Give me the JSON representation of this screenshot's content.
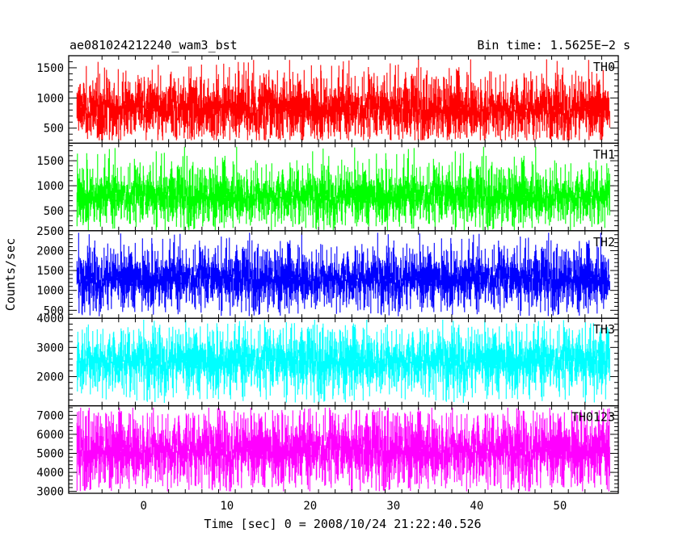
{
  "header": {
    "left_title": "ae081024212240_wam3_bst",
    "right_title": "Bin time: 1.5625E−2 s"
  },
  "chart_data": {
    "type": "line",
    "xlabel": "Time [sec] 0 = 2008/10/24 21:22:40.526",
    "ylabel": "Counts/sec",
    "xlim": [
      -9,
      57
    ],
    "x_start": -8,
    "x_end": 56,
    "x_ticks": [
      0,
      10,
      20,
      30,
      40,
      50
    ],
    "grid": false,
    "panels": [
      {
        "name": "TH0",
        "color": "#ff0000",
        "ylim": [
          250,
          1700
        ],
        "yticks": [
          500,
          1000,
          1500
        ],
        "mean": 820,
        "noise": 160,
        "floor_min": 300,
        "floor_max": 450,
        "peak_max": 1640
      },
      {
        "name": "TH1",
        "color": "#00ff00",
        "ylim": [
          100,
          1850
        ],
        "yticks": [
          500,
          1000,
          1500
        ],
        "mean": 800,
        "noise": 170,
        "floor_min": 100,
        "floor_max": 300,
        "peak_max": 1780
      },
      {
        "name": "TH2",
        "color": "#0000ff",
        "ylim": [
          300,
          2500
        ],
        "yticks": [
          500,
          1000,
          1500,
          2000,
          2500
        ],
        "mean": 1300,
        "noise": 220,
        "floor_min": 350,
        "floor_max": 600,
        "peak_max": 2450
      },
      {
        "name": "TH3",
        "color": "#00ffff",
        "ylim": [
          1000,
          4000
        ],
        "yticks": [
          2000,
          3000,
          4000
        ],
        "mean": 2550,
        "noise": 320,
        "floor_min": 1100,
        "floor_max": 1400,
        "peak_max": 3950
      },
      {
        "name": "TH0123",
        "color": "#ff00ff",
        "ylim": [
          2900,
          7500
        ],
        "yticks": [
          3000,
          4000,
          5000,
          6000,
          7000
        ],
        "mean": 5200,
        "noise": 580,
        "floor_min": 3000,
        "floor_max": 3500,
        "peak_max": 7400
      }
    ]
  }
}
